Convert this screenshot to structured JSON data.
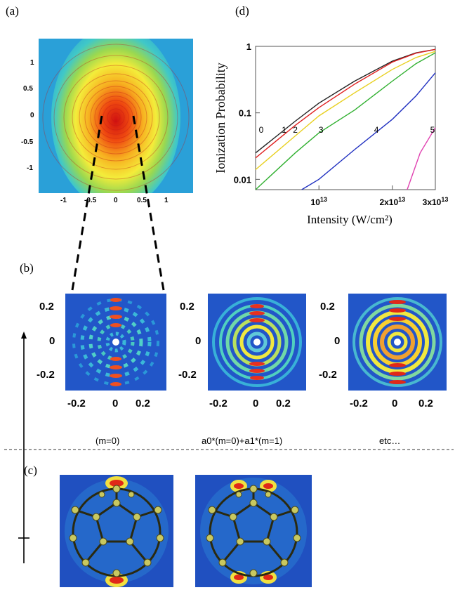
{
  "panels": {
    "a": {
      "label": "(a)",
      "xticks": [
        "-1",
        "-0.5",
        "0",
        "0.5",
        "1"
      ],
      "yticks": [
        "1",
        "0.5",
        "0",
        "-0.5",
        "-1"
      ]
    },
    "b": {
      "label": "(b)",
      "maps": [
        {
          "caption": "(m=0)",
          "xticks": [
            "-0.2",
            "0",
            "0.2"
          ],
          "yticks": [
            "0.2",
            "0",
            "-0.2"
          ]
        },
        {
          "caption": "a0*(m=0)+a1*(m=1)",
          "xticks": [
            "-0.2",
            "0",
            "0.2"
          ],
          "yticks": [
            "0.2",
            "0",
            "-0.2"
          ]
        },
        {
          "caption": "etc…",
          "xticks": [
            "-0.2",
            "0",
            "0.2"
          ],
          "yticks": [
            "0.2",
            "0",
            "-0.2"
          ]
        }
      ]
    },
    "c": {
      "label": "(c)"
    },
    "d": {
      "label": "(d)"
    }
  },
  "chart_data": {
    "type": "line",
    "xlabel": "Intensity (W/cm²)",
    "ylabel": "Ionization Probability",
    "xscale": "log",
    "yscale": "log",
    "xlim": [
      5500000000000.0,
      30000000000000.0
    ],
    "ylim": [
      0.007,
      1
    ],
    "xticks": [
      {
        "value": 10000000000000.0,
        "mantissa": "",
        "base": "10",
        "exp": "13"
      },
      {
        "value": 20000000000000.0,
        "mantissa": "2x",
        "base": "10",
        "exp": "13"
      },
      {
        "value": 30000000000000.0,
        "mantissa": "3x",
        "base": "10",
        "exp": "13"
      }
    ],
    "yticks": [
      {
        "value": 1,
        "label": "1"
      },
      {
        "value": 0.1,
        "label": "0.1"
      },
      {
        "value": 0.01,
        "label": "0.01"
      }
    ],
    "series": [
      {
        "name": "0",
        "color": "#222222",
        "x": [
          5500000000000.0,
          8000000000000.0,
          10000000000000.0,
          14000000000000.0,
          20000000000000.0,
          25000000000000.0,
          30000000000000.0
        ],
        "y": [
          0.025,
          0.075,
          0.14,
          0.3,
          0.6,
          0.8,
          0.9
        ]
      },
      {
        "name": "1",
        "color": "#e02020",
        "x": [
          5500000000000.0,
          8000000000000.0,
          10000000000000.0,
          14000000000000.0,
          20000000000000.0,
          25000000000000.0,
          30000000000000.0
        ],
        "y": [
          0.021,
          0.065,
          0.12,
          0.27,
          0.58,
          0.79,
          0.9
        ]
      },
      {
        "name": "2",
        "color": "#e8d020",
        "x": [
          5500000000000.0,
          8000000000000.0,
          10000000000000.0,
          14000000000000.0,
          20000000000000.0,
          25000000000000.0,
          30000000000000.0
        ],
        "y": [
          0.014,
          0.045,
          0.09,
          0.2,
          0.45,
          0.68,
          0.84
        ]
      },
      {
        "name": "3",
        "color": "#30b030",
        "x": [
          5500000000000.0,
          8000000000000.0,
          10000000000000.0,
          14000000000000.0,
          20000000000000.0,
          25000000000000.0,
          30000000000000.0
        ],
        "y": [
          0.006,
          0.025,
          0.05,
          0.11,
          0.3,
          0.55,
          0.8
        ]
      },
      {
        "name": "4",
        "color": "#2030c0",
        "x": [
          8500000000000.0,
          10000000000000.0,
          14000000000000.0,
          20000000000000.0,
          25000000000000.0,
          30000000000000.0
        ],
        "y": [
          0.006,
          0.01,
          0.028,
          0.08,
          0.18,
          0.4
        ]
      },
      {
        "name": "5",
        "color": "#e040b0",
        "x": [
          23000000000000.0,
          26000000000000.0,
          30000000000000.0
        ],
        "y": [
          0.006,
          0.025,
          0.06
        ]
      }
    ],
    "curve_labels": [
      {
        "text": "0",
        "x": 5800000000000.0,
        "y": 0.05
      },
      {
        "text": "1",
        "x": 7200000000000.0,
        "y": 0.05
      },
      {
        "text": "2",
        "x": 8000000000000.0,
        "y": 0.05
      },
      {
        "text": "3",
        "x": 10200000000000.0,
        "y": 0.05
      },
      {
        "text": "4",
        "x": 17200000000000.0,
        "y": 0.05
      },
      {
        "text": "5",
        "x": 29200000000000.0,
        "y": 0.05
      }
    ]
  }
}
